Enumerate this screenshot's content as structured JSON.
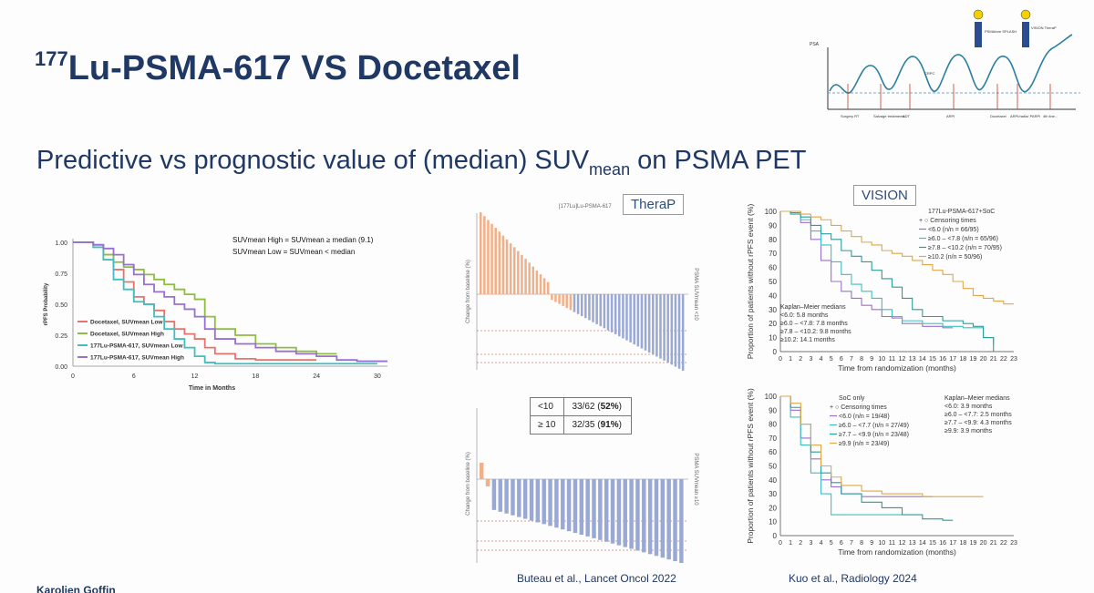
{
  "slide": {
    "title_sup": "177",
    "title_main": "Lu-PSMA-617 VS Docetaxel",
    "subtitle_main": "Predictive vs prognostic value of (median) SUV",
    "subtitle_sub": "mean",
    "subtitle_end": " on PSMA PET",
    "author": "Karolien Goffin",
    "citation_left": "Buteau et al., Lancet Oncol 2022",
    "citation_right": "Kuo et al., Radiology 2024"
  },
  "psa_diagram": {
    "ylabel": "PSA",
    "crpc_label": "CRPC",
    "stages": [
      "Surgery RT",
      "Salvage treatments",
      "ADT",
      "ARPI",
      "Docetaxel",
      "ARPI/radia/ PARPi",
      "4th line..."
    ],
    "flag_left": "PSMAfore SPLASH",
    "flag_right": "VISION TheraP"
  },
  "therap": {
    "label": "TheraP",
    "header": "[177Lu]Lu-PSMA-617",
    "ylabel_top": "Change from baseline (%)",
    "ylabel_bottom": "Change from baseline (%)",
    "side_top": "PSMA SUVmean <10",
    "side_bottom": "PSMA SUVmean ≥10",
    "table": [
      {
        "group": "<10",
        "ratio": "33/62 (",
        "pct": "52%",
        "close": ")"
      },
      {
        "group": "≥ 10",
        "ratio": "32/35 (",
        "pct": "91%",
        "close": ")"
      }
    ],
    "top_bars": 55,
    "bottom_bars": 33
  },
  "chart_data": [
    {
      "type": "line",
      "ylabel": "rPFS Probability",
      "xlabel": "Time in Months",
      "xticks": [
        0,
        6,
        12,
        18,
        24,
        30
      ],
      "yticks": [
        0.0,
        0.25,
        0.5,
        0.75,
        1.0
      ],
      "ytick_labels": [
        "0.00",
        "0.25",
        "0.50",
        "0.75",
        "1.00"
      ],
      "xlim": [
        0,
        31
      ],
      "ylim": [
        0,
        1
      ],
      "annotation_1": "SUVmean High = SUVmean ≥ median (9.1)",
      "annotation_2": "SUVmean Low = SUVmean < median",
      "series": [
        {
          "name": "Docetaxel, SUVmean Low",
          "color": "#e8736c",
          "x": [
            0,
            2,
            3,
            4,
            5,
            6,
            7,
            8,
            9,
            10,
            11,
            12,
            13,
            14,
            16,
            18,
            20,
            24
          ],
          "y": [
            1,
            0.98,
            0.9,
            0.78,
            0.68,
            0.56,
            0.5,
            0.45,
            0.36,
            0.3,
            0.26,
            0.22,
            0.15,
            0.1,
            0.06,
            0.05,
            0.05,
            0.05
          ]
        },
        {
          "name": "Docetaxel, SUVmean High",
          "color": "#8dbf3f",
          "x": [
            0,
            2,
            3,
            4,
            5,
            6,
            7,
            8,
            9,
            10,
            11,
            12,
            13,
            14,
            16,
            18,
            20,
            22,
            24,
            26
          ],
          "y": [
            1,
            0.98,
            0.9,
            0.84,
            0.8,
            0.78,
            0.74,
            0.7,
            0.66,
            0.62,
            0.58,
            0.54,
            0.4,
            0.3,
            0.25,
            0.18,
            0.15,
            0.12,
            0.1,
            0.1
          ]
        },
        {
          "name": "177Lu-PSMA-617, SUVmean Low",
          "color": "#3fbfbf",
          "x": [
            0,
            2,
            3,
            4,
            5,
            6,
            7,
            8,
            9,
            10,
            11,
            12,
            13,
            14,
            16,
            18,
            20,
            24,
            30
          ],
          "y": [
            1,
            0.96,
            0.86,
            0.7,
            0.62,
            0.52,
            0.5,
            0.4,
            0.3,
            0.22,
            0.15,
            0.08,
            0.03,
            0.02,
            0.02,
            0.02,
            0.02,
            0.02,
            0.02
          ]
        },
        {
          "name": "177Lu-PSMA-617, SUVmean High",
          "color": "#9b6fd1",
          "x": [
            0,
            2,
            3,
            4,
            5,
            6,
            7,
            8,
            9,
            10,
            11,
            12,
            13,
            14,
            16,
            18,
            20,
            22,
            24,
            26,
            28,
            31
          ],
          "y": [
            1,
            0.98,
            0.95,
            0.9,
            0.82,
            0.74,
            0.66,
            0.6,
            0.56,
            0.5,
            0.46,
            0.4,
            0.3,
            0.22,
            0.18,
            0.15,
            0.12,
            0.1,
            0.08,
            0.05,
            0.04,
            0.04
          ]
        }
      ]
    },
    {
      "type": "line",
      "label": "VISION",
      "ylabel": "Proportion of patients without rPFS event (%)",
      "xlabel": "Time from randomization (months)",
      "xlim": [
        0,
        23
      ],
      "ylim": [
        0,
        100
      ],
      "legend_title": "177Lu-PSMA-617+SoC",
      "legend_censor": "Censoring times",
      "medians_title": "Kaplan–Meier medians",
      "medians": [
        "<6.0: 5.8 months",
        "≥6.0 – <7.8: 7.8 months",
        "≥7.8 – <10.2: 9.8 months",
        "≥10.2: 14.1 months"
      ],
      "series": [
        {
          "name": "<6.0 (n/n = 66/95)",
          "color": "#9b6fd1",
          "x": [
            0,
            1,
            2,
            3,
            4,
            5,
            6,
            7,
            8,
            9,
            10,
            11,
            12,
            14,
            16,
            17
          ],
          "y": [
            100,
            98,
            92,
            80,
            65,
            50,
            43,
            38,
            33,
            30,
            25,
            24,
            20,
            18,
            17,
            17
          ]
        },
        {
          "name": "≥6.0 – <7.8 (n/n = 65/96)",
          "color": "#3fbfbf",
          "x": [
            0,
            1,
            2,
            3,
            4,
            5,
            6,
            7,
            8,
            9,
            10,
            11,
            12,
            14,
            16,
            18,
            20,
            21
          ],
          "y": [
            100,
            98,
            94,
            86,
            76,
            64,
            55,
            48,
            43,
            38,
            30,
            25,
            22,
            20,
            18,
            17,
            10,
            5
          ]
        },
        {
          "name": "≥7.8 – <10.2 (n/n = 70/95)",
          "color": "#2a9d9f",
          "x": [
            0,
            1,
            2,
            3,
            4,
            5,
            6,
            7,
            8,
            9,
            10,
            11,
            12,
            13,
            14,
            16,
            18,
            19,
            20,
            21
          ],
          "y": [
            100,
            99,
            96,
            90,
            84,
            80,
            72,
            68,
            64,
            58,
            52,
            46,
            38,
            30,
            25,
            22,
            20,
            18,
            10,
            0
          ]
        },
        {
          "name": "≥10.2 (n/n = 50/96)",
          "color": "#e0a84a",
          "x": [
            0,
            1,
            2,
            3,
            4,
            5,
            6,
            7,
            8,
            9,
            10,
            11,
            12,
            13,
            14,
            15,
            16,
            17,
            18,
            19,
            20,
            21,
            22,
            23
          ],
          "y": [
            100,
            100,
            98,
            96,
            94,
            90,
            86,
            82,
            78,
            76,
            72,
            70,
            68,
            65,
            62,
            58,
            55,
            50,
            45,
            40,
            38,
            36,
            34,
            34
          ]
        }
      ]
    },
    {
      "type": "line",
      "ylabel": "Proportion of patients without rPFS event (%)",
      "xlabel": "Time from randomization (months)",
      "xlim": [
        0,
        23
      ],
      "ylim": [
        0,
        100
      ],
      "legend_title": "SoC only",
      "legend_censor": "Censoring times",
      "medians_title": "Kaplan–Meier medians",
      "medians": [
        "<6.0: 3.9 months",
        "≥6.0 – <7.7: 2.5 months",
        "≥7.7 – <9.9: 4.3 months",
        "≥9.9: 3.9 months"
      ],
      "series": [
        {
          "name": "<6.0 (n/n = 19/48)",
          "color": "#9b6fd1",
          "x": [
            0,
            1,
            2,
            3,
            4,
            5,
            6,
            7,
            8,
            10,
            12,
            15
          ],
          "y": [
            100,
            90,
            70,
            55,
            40,
            35,
            30,
            30,
            28,
            28,
            28,
            28
          ]
        },
        {
          "name": "≥6.0 – <7.7 (n/n = 27/49)",
          "color": "#3fbfbf",
          "x": [
            0,
            1,
            2,
            3,
            4,
            5,
            6,
            8,
            10,
            12
          ],
          "y": [
            100,
            85,
            65,
            45,
            30,
            15,
            15,
            15,
            15,
            15
          ]
        },
        {
          "name": "≥7.7 – <9.9 (n/n = 23/48)",
          "color": "#2a9d9f",
          "x": [
            0,
            1,
            2,
            3,
            4,
            5,
            6,
            8,
            10,
            12,
            14,
            16,
            17
          ],
          "y": [
            100,
            92,
            80,
            60,
            45,
            38,
            30,
            24,
            20,
            15,
            12,
            11,
            11
          ]
        },
        {
          "name": "≥9.9 (n/n = 23/49)",
          "color": "#e0a84a",
          "x": [
            0,
            1,
            2,
            3,
            4,
            5,
            6,
            8,
            10,
            12,
            14,
            16,
            18,
            20
          ],
          "y": [
            100,
            95,
            80,
            65,
            50,
            42,
            36,
            32,
            30,
            30,
            28,
            28,
            28,
            28
          ]
        }
      ]
    }
  ]
}
